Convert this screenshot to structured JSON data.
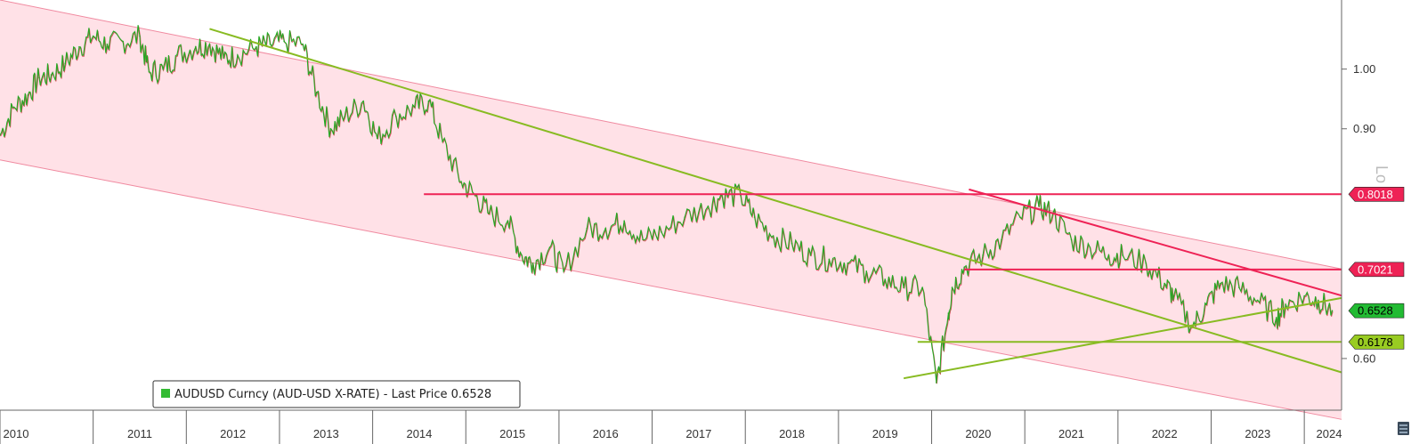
{
  "chart_data": {
    "type": "line",
    "title": "",
    "xlabel": "",
    "ylabel": "",
    "scale_label": "Lo",
    "y_scale": "log",
    "x_range": [
      2010.0,
      2024.4
    ],
    "y_range": [
      0.5477,
      1.1297
    ],
    "x_ticks": [
      "2010",
      "2011",
      "2012",
      "2013",
      "2014",
      "2015",
      "2016",
      "2017",
      "2018",
      "2019",
      "2020",
      "2021",
      "2022",
      "2023",
      "2024"
    ],
    "y_ticks": [
      {
        "value": 1.0,
        "label": "1.00"
      },
      {
        "value": 0.9,
        "label": "0.90"
      },
      {
        "value": 0.6,
        "label": "0.60"
      }
    ],
    "legend": {
      "position": "bottom-left",
      "label": "AUDUSD Curncy (AUD-USD X-RATE) - Last Price 0.6528",
      "color": "#33bb33"
    },
    "series": [
      {
        "name": "AUDUSD Curncy (AUD-USD X-RATE) - Last Price",
        "color": "#22aa22",
        "x": [
          2010.0,
          2010.15,
          2010.3,
          2010.42,
          2010.55,
          2010.7,
          2010.85,
          2011.0,
          2011.15,
          2011.32,
          2011.5,
          2011.6,
          2011.75,
          2011.9,
          2012.1,
          2012.25,
          2012.4,
          2012.55,
          2012.75,
          2012.9,
          2013.05,
          2013.25,
          2013.4,
          2013.55,
          2013.7,
          2013.9,
          2014.05,
          2014.25,
          2014.45,
          2014.6,
          2014.75,
          2014.95,
          2015.1,
          2015.25,
          2015.45,
          2015.6,
          2015.72,
          2015.9,
          2016.05,
          2016.3,
          2016.5,
          2016.7,
          2016.9,
          2017.1,
          2017.35,
          2017.6,
          2017.75,
          2017.95,
          2018.1,
          2018.3,
          2018.5,
          2018.7,
          2018.9,
          2019.1,
          2019.3,
          2019.5,
          2019.7,
          2019.9,
          2020.05,
          2020.18,
          2020.22,
          2020.35,
          2020.55,
          2020.75,
          2020.95,
          2021.15,
          2021.3,
          2021.5,
          2021.7,
          2021.9,
          2022.05,
          2022.3,
          2022.5,
          2022.6,
          2022.8,
          2022.95,
          2023.1,
          2023.3,
          2023.5,
          2023.7,
          2023.8,
          2024.0,
          2024.15,
          2024.3
        ],
        "y": [
          0.89,
          0.935,
          0.955,
          0.985,
          0.99,
          1.01,
          1.04,
          1.06,
          1.045,
          1.05,
          1.06,
          0.995,
          1.0,
          1.025,
          1.04,
          1.045,
          1.02,
          1.025,
          1.04,
          1.045,
          1.05,
          1.045,
          0.96,
          0.9,
          0.92,
          0.945,
          0.885,
          0.92,
          0.935,
          0.945,
          0.88,
          0.82,
          0.8,
          0.775,
          0.765,
          0.72,
          0.71,
          0.73,
          0.7,
          0.755,
          0.755,
          0.765,
          0.74,
          0.75,
          0.77,
          0.785,
          0.8,
          0.8,
          0.77,
          0.745,
          0.735,
          0.72,
          0.715,
          0.71,
          0.7,
          0.69,
          0.68,
          0.68,
          0.575,
          0.65,
          0.68,
          0.705,
          0.72,
          0.74,
          0.77,
          0.785,
          0.775,
          0.74,
          0.73,
          0.72,
          0.72,
          0.71,
          0.685,
          0.67,
          0.635,
          0.66,
          0.685,
          0.68,
          0.665,
          0.645,
          0.66,
          0.67,
          0.665,
          0.6528
        ]
      }
    ],
    "annotations": {
      "channel_upper": {
        "x": [
          2010.0,
          2024.4
        ],
        "y": [
          1.1297,
          0.7028
        ]
      },
      "channel_lower": {
        "x": [
          2010.0,
          2024.4
        ],
        "y": [
          0.8519,
          0.5389
        ]
      },
      "trend_lines": [
        {
          "color": "#88bb22",
          "x": [
            2012.25,
            2024.4
          ],
          "y": [
            1.0736,
            0.5855
          ]
        },
        {
          "color": "#88bb22",
          "x": [
            2019.7,
            2024.4
          ],
          "y": [
            0.5794,
            0.6677
          ]
        },
        {
          "color": "#88bb22",
          "x": [
            2019.85,
            2024.4
          ],
          "y": [
            0.6178,
            0.6178
          ]
        },
        {
          "color": "#ee2255",
          "x": [
            2020.4,
            2024.4
          ],
          "y": [
            0.8087,
            0.6705
          ]
        }
      ],
      "levels": [
        {
          "value": 0.8018,
          "label": "0.8018",
          "kind": "resistance",
          "x_start": 2014.55
        },
        {
          "value": 0.7021,
          "label": "0.7021",
          "kind": "resistance",
          "x_start": 2020.35
        },
        {
          "value": 0.6528,
          "label": "0.6528",
          "kind": "last_price"
        },
        {
          "value": 0.6178,
          "label": "0.6178",
          "kind": "support"
        }
      ]
    }
  }
}
